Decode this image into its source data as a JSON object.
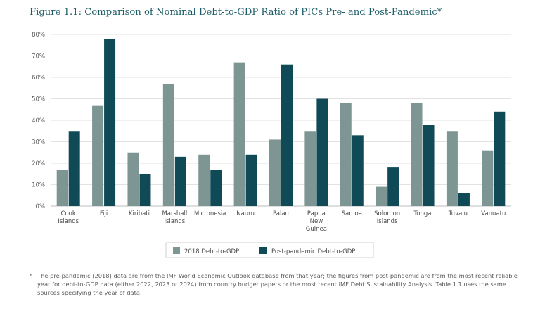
{
  "figure": {
    "title": "Figure 1.1: Comparison of Nominal Debt-to-GDP Ratio of PICs Pre- and Post-Pandemic*",
    "footnote_marker": "*",
    "footnote": "The pre-pandemic (2018) data  are from the IMF World Economic Outlook database from that year; the figures from post-pandemic are from the most recent reliable year for debt-to-GDP data (either 2022, 2023 or 2024) from country budget papers or the most recent IMF Debt Sustainability Analysis. Table 1.1 uses the same sources specifying the year of data."
  },
  "chart_data": {
    "type": "bar",
    "title": "Figure 1.1: Comparison of Nominal Debt-to-GDP Ratio of PICs Pre- and Post-Pandemic*",
    "xlabel": "",
    "ylabel": "",
    "categories": [
      [
        "Cook",
        "Islands"
      ],
      [
        "Fiji"
      ],
      [
        "Kiribati"
      ],
      [
        "Marshall",
        "Islands"
      ],
      [
        "Micronesia"
      ],
      [
        "Nauru"
      ],
      [
        "Palau"
      ],
      [
        "Papua",
        "New",
        "Guinea"
      ],
      [
        "Samoa"
      ],
      [
        "Solomon",
        "Islands"
      ],
      [
        "Tonga"
      ],
      [
        "Tuvalu"
      ],
      [
        "Vanuatu"
      ]
    ],
    "series": [
      {
        "name": "2018 Debt-to-GDP",
        "color": "#7d9694",
        "values": [
          17,
          47,
          25,
          57,
          24,
          67,
          31,
          35,
          48,
          9,
          48,
          35,
          26
        ]
      },
      {
        "name": "Post-pandemic Debt-to-GDP",
        "color": "#0f4a56",
        "values": [
          35,
          78,
          15,
          23,
          17,
          24,
          66,
          50,
          33,
          18,
          38,
          6,
          44
        ]
      }
    ],
    "ylim": [
      0,
      80
    ],
    "yticks": [
      "0%",
      "10%",
      "20%",
      "30%",
      "40%",
      "50%",
      "60%",
      "70%",
      "80%"
    ],
    "grid": true,
    "legend_position": "bottom-center"
  }
}
